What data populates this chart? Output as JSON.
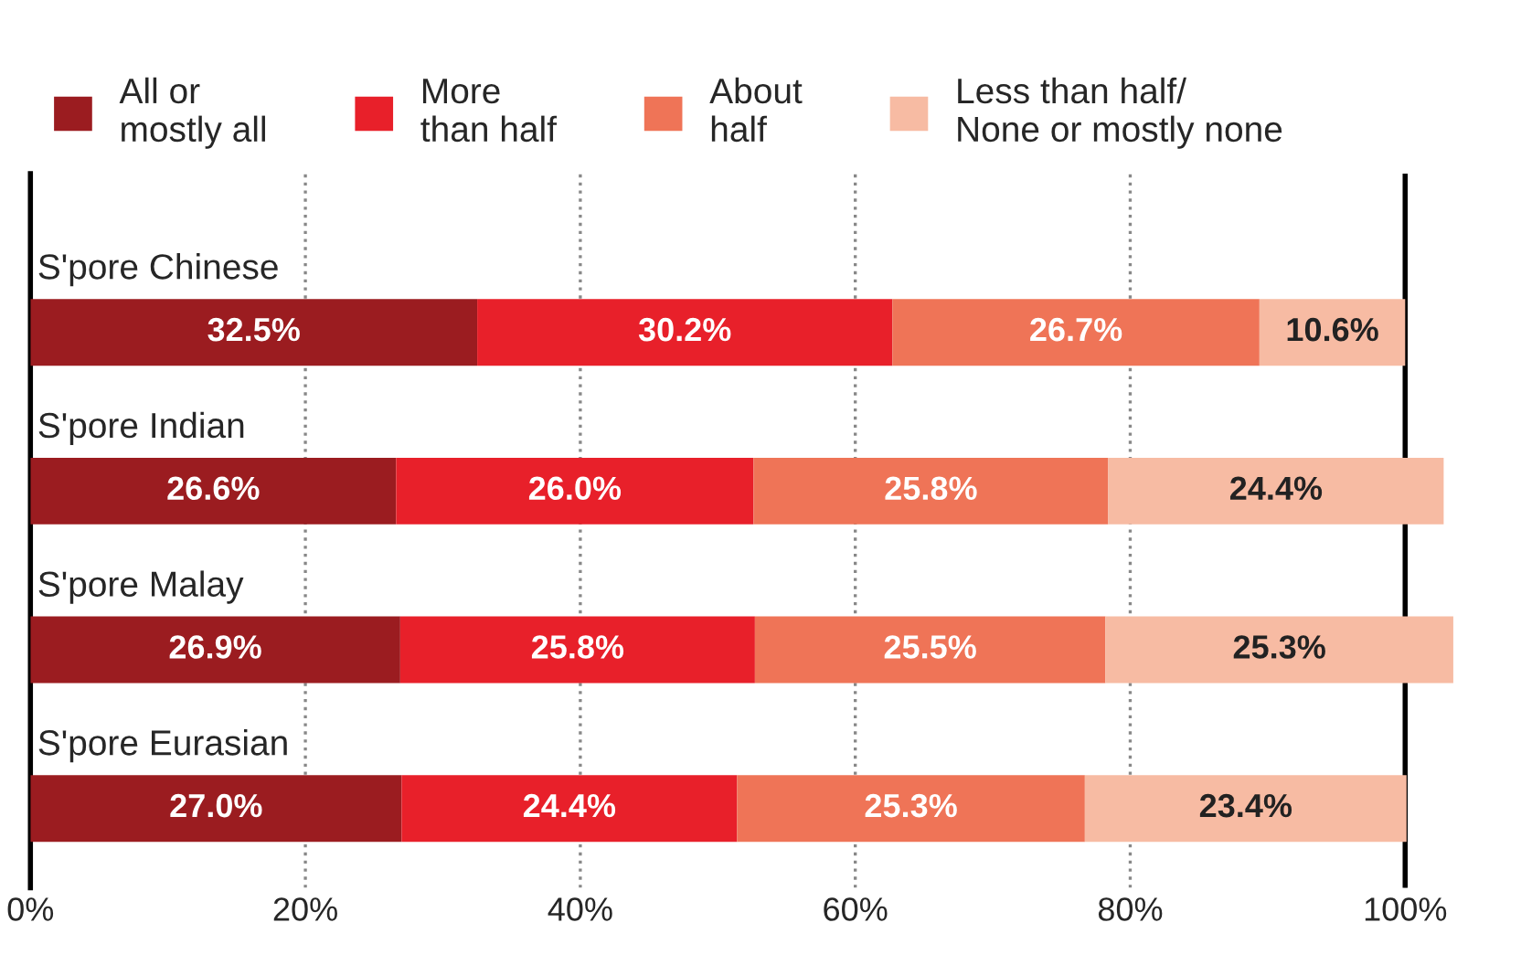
{
  "chart_data": {
    "type": "bar",
    "orientation": "horizontal",
    "stacked": true,
    "categories": [
      "S'pore Chinese",
      "S'pore Indian",
      "S'pore Malay",
      "S'pore Eurasian"
    ],
    "series": [
      {
        "name": "All or\nmostly all",
        "color": "#9b1c20",
        "values": [
          32.5,
          26.6,
          26.9,
          27.0
        ],
        "value_labels": [
          "32.5%",
          "26.6%",
          "26.9%",
          "27.0%"
        ]
      },
      {
        "name": "More\nthan half",
        "color": "#e8202a",
        "values": [
          30.2,
          26.0,
          25.8,
          24.4
        ],
        "value_labels": [
          "30.2%",
          "26.0%",
          "25.8%",
          "24.4%"
        ]
      },
      {
        "name": "About\nhalf",
        "color": "#ef7457",
        "values": [
          26.7,
          25.8,
          25.5,
          25.3
        ],
        "value_labels": [
          "26.7%",
          "25.8%",
          "25.5%",
          "25.3%"
        ]
      },
      {
        "name": "Less than half/\nNone or mostly none",
        "color": "#f7bba3",
        "values": [
          10.6,
          24.4,
          25.3,
          23.4
        ],
        "value_labels": [
          "10.6%",
          "24.4%",
          "25.3%",
          "23.4%"
        ]
      }
    ],
    "xlim": [
      0,
      104
    ],
    "xticks": [
      {
        "value": 0,
        "label": "0%"
      },
      {
        "value": 20,
        "label": "20%"
      },
      {
        "value": 40,
        "label": "40%"
      },
      {
        "value": 60,
        "label": "60%"
      },
      {
        "value": 80,
        "label": "80%"
      },
      {
        "value": 100,
        "label": "100%"
      }
    ],
    "ref_lines": [
      {
        "axis": "x",
        "value": 100,
        "color": "#000000",
        "line_style": "solid"
      }
    ],
    "grid": "x",
    "legend": "top",
    "tick_labels": "x"
  }
}
